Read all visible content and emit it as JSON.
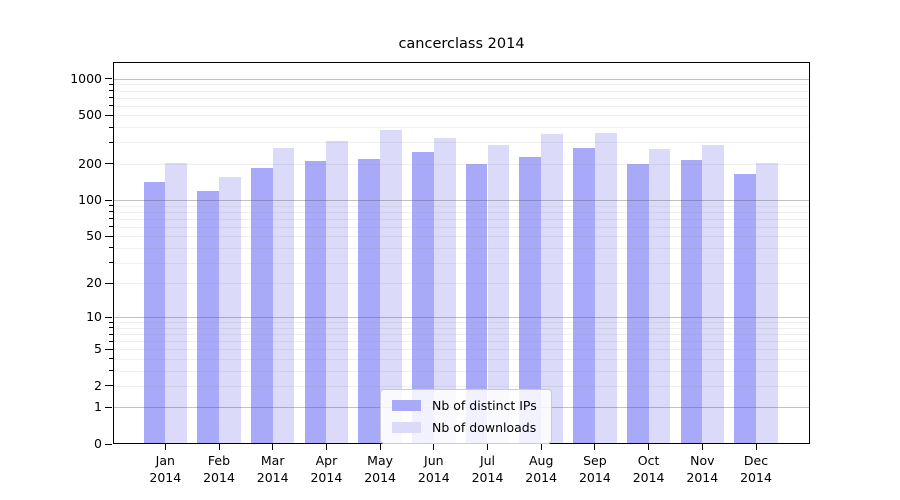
{
  "chart_data": {
    "type": "bar",
    "title": "cancerclass 2014",
    "categories": [
      "Jan",
      "Feb",
      "Mar",
      "Apr",
      "May",
      "Jun",
      "Jul",
      "Aug",
      "Sep",
      "Oct",
      "Nov",
      "Dec"
    ],
    "xtick_second_line": "2014",
    "series": [
      {
        "name": "Nb of distinct IPs",
        "color": "#a9a9f9",
        "values": [
          142,
          120,
          184,
          212,
          217,
          251,
          199,
          227,
          272,
          200,
          214,
          164
        ]
      },
      {
        "name": "Nb of downloads",
        "color": "#dbdbf9",
        "values": [
          201,
          155,
          269,
          308,
          377,
          328,
          283,
          354,
          356,
          266,
          286,
          202
        ]
      }
    ],
    "yscale": "log1p",
    "ylim": [
      0,
      1360
    ],
    "yticks": [
      0,
      1,
      2,
      5,
      10,
      20,
      50,
      100,
      200,
      500,
      1000
    ],
    "major_gridline_values": [
      1,
      10,
      100,
      1000
    ],
    "minor_gridline_decades": [
      1,
      10,
      100
    ],
    "grid": true,
    "legend_position": "lower-center"
  },
  "colors": {
    "background": "#ffffff",
    "axis": "#000000",
    "text": "#000000",
    "major_grid": "rgba(80,80,80,0.35)",
    "minor_grid": "rgba(130,130,130,0.13)",
    "legend_border": "#cccccc"
  }
}
